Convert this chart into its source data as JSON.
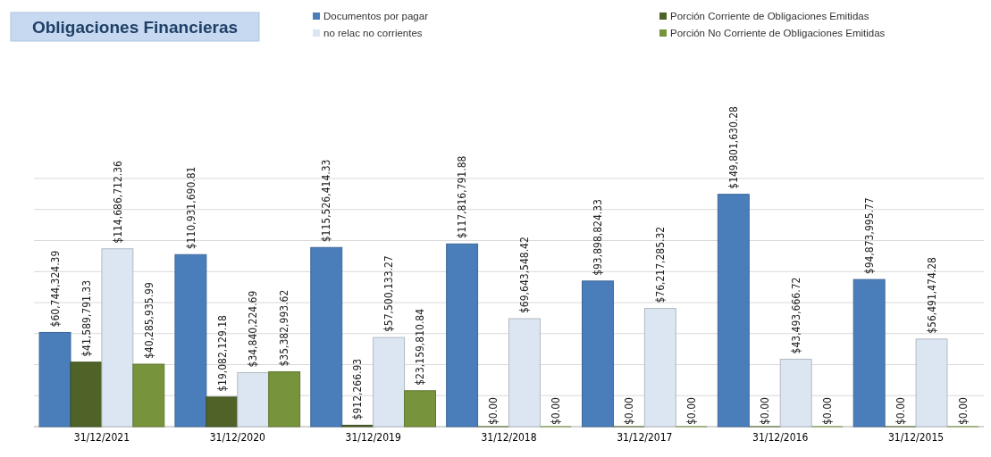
{
  "chart_data": {
    "type": "bar",
    "title": "Obligaciones Financieras",
    "categories": [
      "31/12/2021",
      "31/12/2020",
      "31/12/2019",
      "31/12/2018",
      "31/12/2017",
      "31/12/2016",
      "31/12/2015"
    ],
    "series": [
      {
        "name": "Documentos por pagar",
        "color": "#4a7ebb",
        "values": [
          60744324.39,
          110931690.81,
          115526414.33,
          117816791.88,
          93898824.33,
          149801630.28,
          94873995.77
        ],
        "value_labels": [
          "$60,744,324.39",
          "$110,931,690.81",
          "$115,526,414.33",
          "$117,816,791.88",
          "$93,898,824.33",
          "$149,801,630.28",
          "$94,873,995.77"
        ]
      },
      {
        "name": "Porción Corriente de Obligaciones Emitidas",
        "color": "#4f6228",
        "values": [
          41589791.33,
          19082129.18,
          912266.93,
          0,
          0,
          0,
          0
        ],
        "value_labels": [
          "$41,589,791.33",
          "$19,082,129.18",
          "$912,266.93",
          "$0.00",
          "$0.00",
          "$0.00",
          "$0.00"
        ]
      },
      {
        "name": "no relac no corrientes",
        "color": "#dce6f2",
        "values": [
          114686712.36,
          34840224.69,
          57500133.27,
          69643548.42,
          76217285.32,
          43493666.72,
          56491474.28
        ],
        "value_labels": [
          "$114,686,712.36",
          "$34,840,224.69",
          "$57,500,133.27",
          "$69,643,548.42",
          "$76,217,285.32",
          "$43,493,666.72",
          "$56,491,474.28"
        ]
      },
      {
        "name": "Porción No Corriente de Obligaciones Emitidas",
        "color": "#77933c",
        "values": [
          40285935.99,
          35382993.62,
          23159810.84,
          0,
          0,
          0,
          0
        ],
        "value_labels": [
          "$40,285,935.99",
          "$35,382,993.62",
          "$23,159,810.84",
          "$0.00",
          "$0.00",
          "$0.00",
          "$0.00"
        ]
      }
    ],
    "ylim": [
      0,
      160000000
    ],
    "yticks": [
      {
        "value": 0,
        "label": null
      },
      {
        "value": 20000000,
        "label": null
      },
      {
        "value": 40000000,
        "label": null
      },
      {
        "value": 60000000,
        "label": null
      },
      {
        "value": 80000000,
        "label": null
      },
      {
        "value": 100000000,
        "label": null
      },
      {
        "value": 120000000,
        "label": null
      },
      {
        "value": 140000000,
        "label": null
      },
      {
        "value": 160000000,
        "label": null
      }
    ],
    "grid": "y",
    "legend": "top right",
    "tick_labels": "x"
  }
}
